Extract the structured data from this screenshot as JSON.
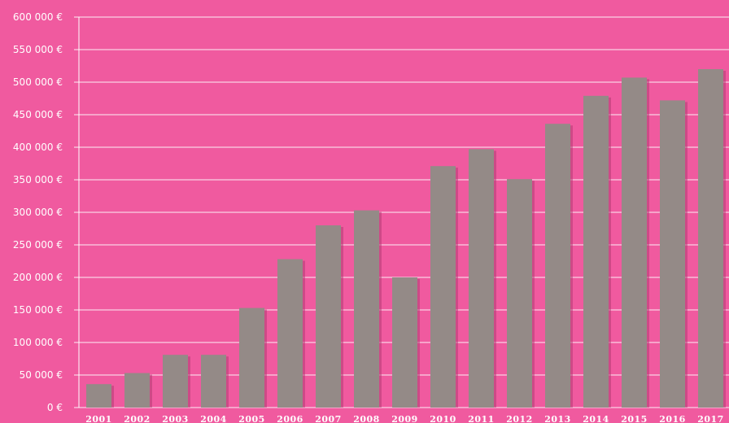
{
  "colors": {
    "background": "#f05a9f",
    "bar": "#948a87",
    "grid": "#ffffff",
    "text": "#ffffff"
  },
  "chart_data": {
    "type": "bar",
    "title": "",
    "xlabel": "",
    "ylabel": "",
    "categories": [
      "2001",
      "2002",
      "2003",
      "2004",
      "2005",
      "2006",
      "2007",
      "2008",
      "2009",
      "2010",
      "2011",
      "2012",
      "2013",
      "2014",
      "2015",
      "2016",
      "2017"
    ],
    "values": [
      36000,
      53000,
      81000,
      81000,
      153000,
      228000,
      280000,
      303000,
      200000,
      371000,
      397000,
      351000,
      436000,
      479000,
      507000,
      472000,
      520000
    ],
    "ylim": [
      0,
      600000
    ],
    "yticks": [
      0,
      50000,
      100000,
      150000,
      200000,
      250000,
      300000,
      350000,
      400000,
      450000,
      500000,
      550000,
      600000
    ],
    "ytick_labels": [
      "0 €",
      "50 000 €",
      "100 000 €",
      "150 000 €",
      "200 000 €",
      "250 000 €",
      "300 000 €",
      "350 000 €",
      "400 000 €",
      "450 000 €",
      "500 000 €",
      "550 000 €",
      "600 000 €"
    ],
    "grid": true,
    "legend": "none"
  }
}
